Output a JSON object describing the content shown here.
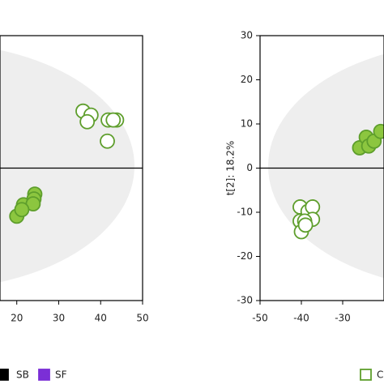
{
  "chart_data": [
    {
      "type": "scatter",
      "xlim": [
        16,
        50
      ],
      "xticks": [
        20,
        30,
        40,
        50
      ],
      "ylim": [
        -30,
        30
      ],
      "zero_line": true,
      "series": [
        {
          "color": "#5e9e2c",
          "fill": "#ffffff",
          "x": [
            35.8,
            37.7,
            36.8,
            41.8,
            43.8,
            43.0,
            41.6
          ],
          "y": [
            12.9,
            12.0,
            10.5,
            10.9,
            10.9,
            10.9,
            6.1
          ]
        },
        {
          "color": "#5e9e2c",
          "fill": "#8cc63f",
          "x": [
            20.0,
            21.6,
            24.3,
            24.1,
            23.9,
            21.2
          ],
          "y": [
            -10.9,
            -8.3,
            -5.9,
            -7.0,
            -8.1,
            -9.4
          ]
        }
      ],
      "legend": [
        {
          "label": "SB",
          "color": "#000000"
        },
        {
          "label": "SF",
          "color": "#7b2fd6"
        }
      ]
    },
    {
      "type": "scatter",
      "ylabel": "t[2]: 18.2%",
      "xlim": [
        -50,
        -20
      ],
      "xticks": [
        -50,
        -40,
        -30
      ],
      "ylim": [
        -30,
        30
      ],
      "yticks": [
        -30,
        -20,
        -10,
        0,
        10,
        20,
        30
      ],
      "zero_line": true,
      "series": [
        {
          "color": "#5e9e2c",
          "fill": "#ffffff",
          "x": [
            -40.3,
            -38.4,
            -37.3,
            -40.3,
            -37.3,
            -39.2,
            -40.0,
            -39.0
          ],
          "y": [
            -8.8,
            -9.8,
            -8.8,
            -12.0,
            -11.6,
            -12.0,
            -14.4,
            -12.9
          ]
        },
        {
          "color": "#5e9e2c",
          "fill": "#8cc63f",
          "x": [
            -25.9,
            -24.3,
            -23.7,
            -22.4,
            -20.8
          ],
          "y": [
            4.6,
            7.0,
            5.0,
            6.1,
            8.3
          ]
        }
      ],
      "legend": [
        {
          "label": "C",
          "color": "#5e9e2c"
        }
      ]
    }
  ]
}
